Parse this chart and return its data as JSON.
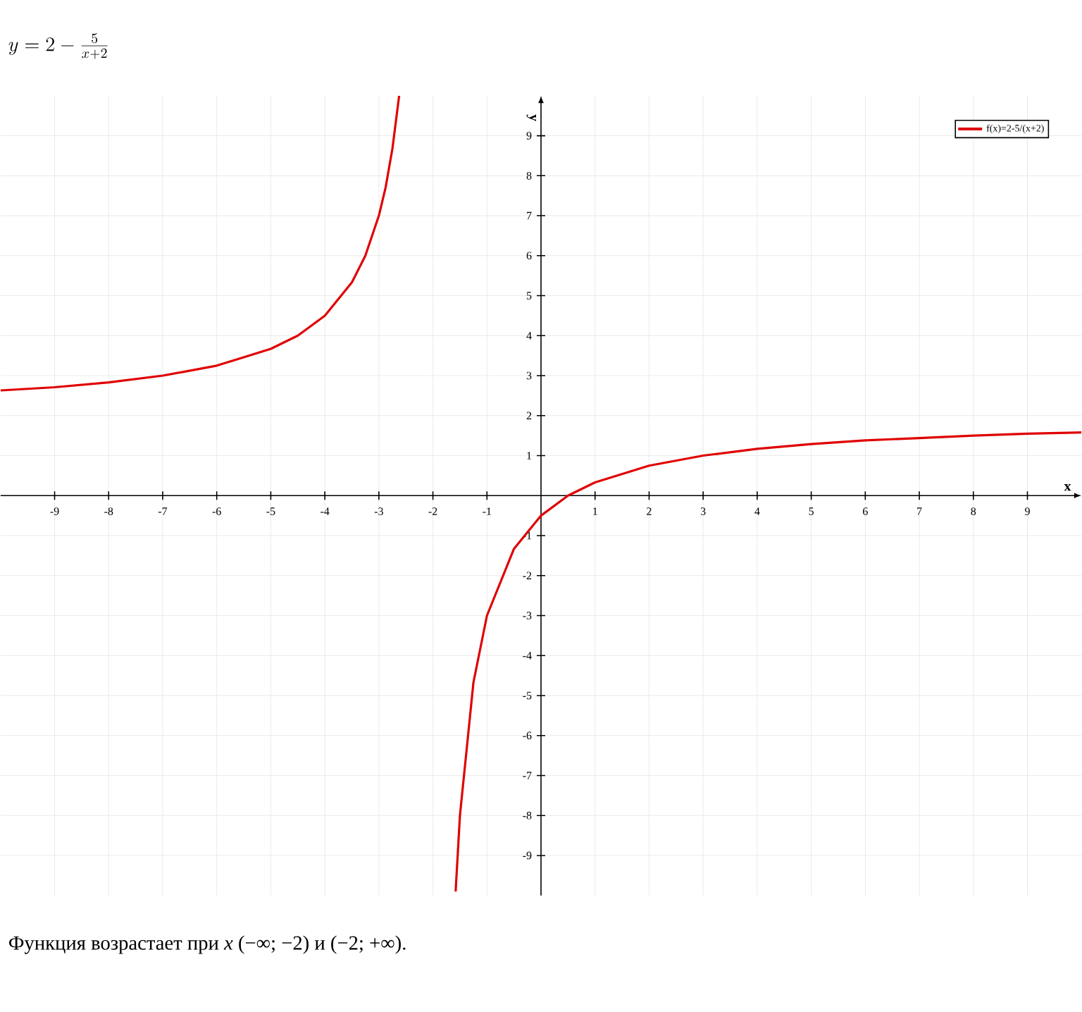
{
  "chart_data": {
    "type": "line",
    "title": "y = 2 - \\frac{5}{x+2}",
    "xlabel": "x",
    "ylabel": "y",
    "annotations": [
      "Функция возрастает при *x* (−∞; −2) и (−2; +∞)."
    ],
    "series": [
      {
        "name": "f(x)=2-5/(x+2)",
        "color": "#e00000",
        "x": [
          -10,
          -9,
          -8,
          -7,
          -6,
          -5,
          -4.5,
          -4,
          -3.5,
          -3.25,
          -3,
          -2.875,
          -2.75,
          -2.625
        ],
        "values": [
          2.63,
          2.71,
          2.83,
          3,
          3.25,
          3.67,
          4,
          4.5,
          5.33,
          6,
          7,
          7.71,
          8.67,
          10
        ]
      },
      {
        "color": "#e00000",
        "x": [
          -1.58,
          -1.5,
          -1.25,
          -1,
          -0.5,
          0,
          0.5,
          1,
          2,
          3,
          4,
          5,
          6,
          7,
          8,
          9,
          10
        ],
        "values": [
          -9.9,
          -8,
          -4.67,
          -3,
          -1.33,
          -0.5,
          0,
          0.33,
          0.75,
          1,
          1.17,
          1.29,
          1.38,
          1.44,
          1.5,
          1.55,
          1.58
        ]
      }
    ],
    "xlim": [
      -10,
      10
    ],
    "ylim": [
      -10,
      10
    ],
    "xticks": [
      -9,
      -8,
      -7,
      -6,
      -5,
      -4,
      -3,
      -2,
      -1,
      1,
      2,
      3,
      4,
      5,
      6,
      7,
      8,
      9
    ],
    "yticks": [
      -9,
      -8,
      -7,
      -6,
      -5,
      -4,
      -3,
      -2,
      -1,
      1,
      2,
      3,
      4,
      5,
      6,
      7,
      8,
      9
    ],
    "grid": true,
    "legend": "top right",
    "marker": "none",
    "line_style": "solid"
  }
}
